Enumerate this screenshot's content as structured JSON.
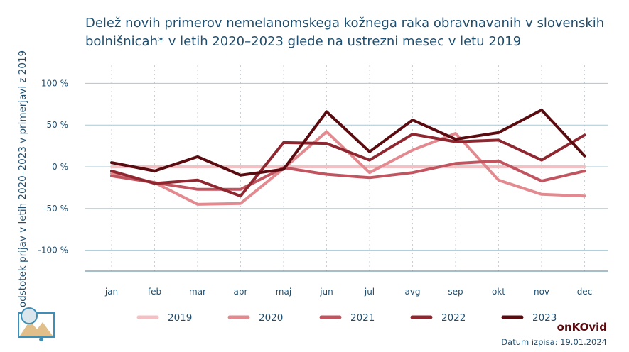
{
  "chart_data": {
    "type": "line",
    "title_lines": [
      "Delež novih primerov nemelanomskega kožnega raka obravnavanih v slovenskih",
      "bolnišnicah* v letih 2020–2023 glede na ustrezni mesec v letu 2019"
    ],
    "ylabel": "odstotek prijav v letih 2020–2023 v primerjavi z 2019",
    "categories": [
      "jan",
      "feb",
      "mar",
      "apr",
      "maj",
      "jun",
      "jul",
      "avg",
      "sep",
      "okt",
      "nov",
      "dec"
    ],
    "yticks": [
      {
        "value": 100,
        "label": "100 %"
      },
      {
        "value": 50,
        "label": "50 %"
      },
      {
        "value": 0,
        "label": "0 %"
      },
      {
        "value": -50,
        "label": "-50 %"
      },
      {
        "value": -100,
        "label": "-100 %"
      }
    ],
    "ylim": [
      -125,
      125
    ],
    "series": [
      {
        "name": "2019",
        "color": "#f4c0c4",
        "values": [
          0,
          0,
          0,
          0,
          0,
          0,
          0,
          0,
          0,
          0,
          0,
          0
        ]
      },
      {
        "name": "2020",
        "color": "#e28a8f",
        "values": [
          -8,
          -19,
          -45,
          -44,
          -2,
          42,
          -7,
          20,
          40,
          -16,
          -33,
          -35
        ]
      },
      {
        "name": "2021",
        "color": "#c05560",
        "values": [
          -11,
          -19,
          -27,
          -27,
          -1,
          -9,
          -13,
          -7,
          4,
          7,
          -17,
          -5
        ]
      },
      {
        "name": "2022",
        "color": "#8f2731",
        "values": [
          -5,
          -20,
          -16,
          -35,
          29,
          28,
          8,
          39,
          30,
          32,
          8,
          38
        ]
      },
      {
        "name": "2023",
        "color": "#5a0b10",
        "values": [
          5,
          -5,
          12,
          -10,
          -3,
          66,
          18,
          56,
          33,
          41,
          68,
          13
        ]
      }
    ],
    "grid": true,
    "legend": "bottom"
  },
  "footer": {
    "brand": "onKOvid",
    "date": "Datum izpisa: 19.01.2024"
  },
  "logo": {
    "icon": "mountain-map-logo-icon"
  }
}
